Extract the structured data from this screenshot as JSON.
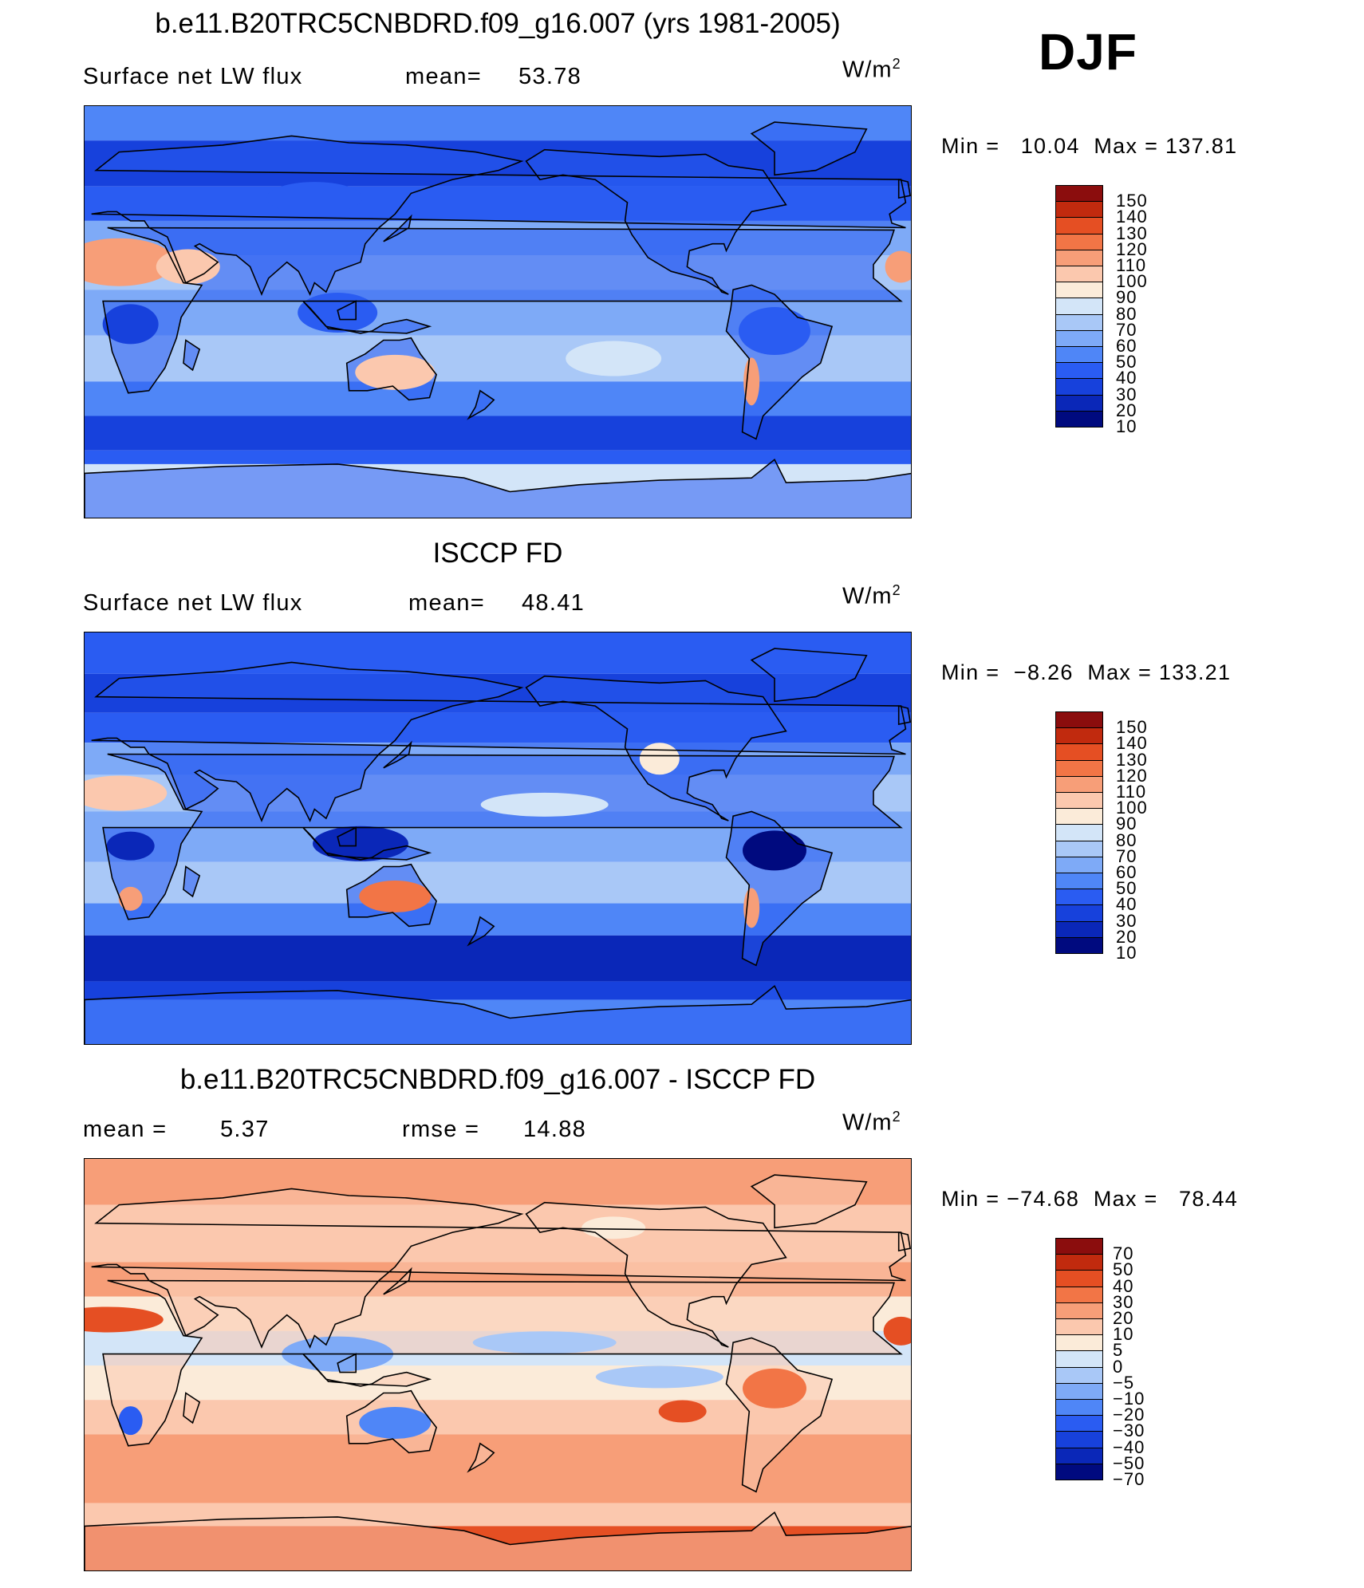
{
  "season": "DJF",
  "palette_abs": [
    "#000a7f",
    "#0a27b8",
    "#1741dc",
    "#2a5cf2",
    "#4f86f7",
    "#7eaaf7",
    "#a9c8f7",
    "#d3e5f8",
    "#fbebd9",
    "#fbc8ae",
    "#f79e78",
    "#f27546",
    "#e54f23",
    "#c12a0e",
    "#8b0d0d"
  ],
  "palette_diff": [
    "#000a7f",
    "#0a27b8",
    "#1741dc",
    "#2a5cf2",
    "#4f86f7",
    "#7eaaf7",
    "#a9c8f7",
    "#d3e5f8",
    "#fbebd9",
    "#fbc8ae",
    "#f79e78",
    "#f27546",
    "#e54f23",
    "#c12a0e",
    "#8b0d0d"
  ],
  "panels": [
    {
      "id": "model",
      "title": "b.e11.B20TRC5CNBDRD.f09_g16.007 (yrs 1981-2005)",
      "left_label": "Surface net LW flux",
      "stat_label": "mean=",
      "stat_value": "53.78",
      "units": "W/m",
      "units_exp": "2",
      "min_label": "Min =",
      "min_value": "10.04",
      "max_label": "Max =",
      "max_value": "137.81",
      "levels": [
        "150",
        "140",
        "130",
        "120",
        "110",
        "100",
        "90",
        "80",
        "70",
        "60",
        "50",
        "40",
        "30",
        "20",
        "10"
      ],
      "mean_value": 53.78
    },
    {
      "id": "obs",
      "title": "ISCCP FD",
      "left_label": "Surface net LW flux",
      "stat_label": "mean=",
      "stat_value": "48.41",
      "units": "W/m",
      "units_exp": "2",
      "min_label": "Min =",
      "min_value": "−8.26",
      "max_label": "Max =",
      "max_value": "133.21",
      "levels": [
        "150",
        "140",
        "130",
        "120",
        "110",
        "100",
        "90",
        "80",
        "70",
        "60",
        "50",
        "40",
        "30",
        "20",
        "10"
      ],
      "mean_value": 48.41
    },
    {
      "id": "diff",
      "title": "b.e11.B20TRC5CNBDRD.f09_g16.007 - ISCCP FD",
      "left_label": "mean =",
      "left_value": "5.37",
      "stat_label": "rmse =",
      "stat_value": "14.88",
      "units": "W/m",
      "units_exp": "2",
      "min_label": "Min =",
      "min_value": "−74.68",
      "max_label": "Max =",
      "max_value": "78.44",
      "levels": [
        "70",
        "50",
        "40",
        "30",
        "20",
        "10",
        "5",
        "0",
        "−5",
        "−10",
        "−20",
        "−30",
        "−40",
        "−50",
        "−70"
      ],
      "mean_value": 5.37
    }
  ]
}
